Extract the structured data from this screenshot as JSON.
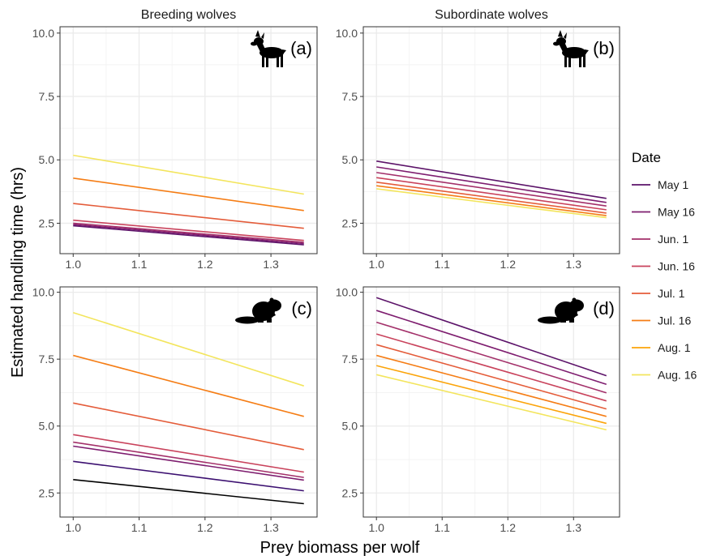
{
  "chart_data": {
    "type": "line",
    "xlabel": "Prey biomass per wolf",
    "ylabel": "Estimated handling time (hrs)",
    "columns": [
      "Breeding wolves",
      "Subordinate wolves"
    ],
    "xlim": [
      0.98,
      1.37
    ],
    "x_ticks": [
      "1.0",
      "1.1",
      "1.2",
      "1.3"
    ],
    "x_tick_values": [
      1.0,
      1.1,
      1.2,
      1.3
    ],
    "y_ticks": [
      "2.5",
      "5.0",
      "7.5",
      "10.0"
    ],
    "y_tick_values": [
      2.5,
      5.0,
      7.5,
      10.0
    ],
    "grid": true,
    "legend": {
      "title": "Date",
      "position": "right",
      "entries": [
        "May 1",
        "May 16",
        "Jun. 1",
        "Jun. 16",
        "Jul. 1",
        "Jul. 16",
        "Aug. 1",
        "Aug. 16"
      ],
      "colors": [
        "#5c1369",
        "#7e1d6f",
        "#a3306a",
        "#c9435c",
        "#e45c3a",
        "#f57d15",
        "#fba40a",
        "#f3e55d"
      ]
    },
    "panels": [
      {
        "tag": "(a)",
        "column": 0,
        "row": 0,
        "prey_icon": "deer-icon",
        "ylim": [
          1.3,
          10.25
        ],
        "series": [
          {
            "x": [
              1.0,
              1.35
            ],
            "y": [
              2.4,
              1.65
            ],
            "color": "#5c1369"
          },
          {
            "x": [
              1.0,
              1.35
            ],
            "y": [
              2.45,
              1.7
            ],
            "color": "#7e1d6f"
          },
          {
            "x": [
              1.0,
              1.35
            ],
            "y": [
              2.5,
              1.75
            ],
            "color": "#a3306a"
          },
          {
            "x": [
              1.0,
              1.35
            ],
            "y": [
              2.62,
              1.82
            ],
            "color": "#c9435c"
          },
          {
            "x": [
              1.0,
              1.35
            ],
            "y": [
              3.28,
              2.3
            ],
            "color": "#e45c3a"
          },
          {
            "x": [
              1.0,
              1.35
            ],
            "y": [
              4.28,
              3.0
            ],
            "color": "#f57d15"
          },
          {
            "x": [
              1.0,
              1.35
            ],
            "y": [
              5.18,
              3.65
            ],
            "color": "#f3e55d"
          }
        ]
      },
      {
        "tag": "(b)",
        "column": 1,
        "row": 0,
        "prey_icon": "deer-icon",
        "ylim": [
          1.3,
          10.25
        ],
        "series": [
          {
            "x": [
              1.0,
              1.35
            ],
            "y": [
              4.95,
              3.48
            ],
            "color": "#5c1369"
          },
          {
            "x": [
              1.0,
              1.35
            ],
            "y": [
              4.72,
              3.32
            ],
            "color": "#7e1d6f"
          },
          {
            "x": [
              1.0,
              1.35
            ],
            "y": [
              4.5,
              3.18
            ],
            "color": "#a3306a"
          },
          {
            "x": [
              1.0,
              1.35
            ],
            "y": [
              4.3,
              3.03
            ],
            "color": "#c9435c"
          },
          {
            "x": [
              1.0,
              1.35
            ],
            "y": [
              4.12,
              2.9
            ],
            "color": "#e45c3a"
          },
          {
            "x": [
              1.0,
              1.35
            ],
            "y": [
              3.98,
              2.8
            ],
            "color": "#f57d15"
          },
          {
            "x": [
              1.0,
              1.35
            ],
            "y": [
              3.86,
              2.72
            ],
            "color": "#f3e55d"
          }
        ]
      },
      {
        "tag": "(c)",
        "column": 0,
        "row": 1,
        "prey_icon": "beaver-icon",
        "ylim": [
          1.6,
          10.2
        ],
        "series": [
          {
            "x": [
              1.0,
              1.35
            ],
            "y": [
              3.0,
              2.1
            ],
            "color": "#000000"
          },
          {
            "x": [
              1.0,
              1.35
            ],
            "y": [
              3.68,
              2.58
            ],
            "color": "#3b0f70"
          },
          {
            "x": [
              1.0,
              1.35
            ],
            "y": [
              4.25,
              2.98
            ],
            "color": "#7e1d6f"
          },
          {
            "x": [
              1.0,
              1.35
            ],
            "y": [
              4.4,
              3.08
            ],
            "color": "#a3306a"
          },
          {
            "x": [
              1.0,
              1.35
            ],
            "y": [
              4.68,
              3.28
            ],
            "color": "#c9435c"
          },
          {
            "x": [
              1.0,
              1.35
            ],
            "y": [
              5.86,
              4.12
            ],
            "color": "#e45c3a"
          },
          {
            "x": [
              1.0,
              1.35
            ],
            "y": [
              7.64,
              5.36
            ],
            "color": "#f57d15"
          },
          {
            "x": [
              1.0,
              1.35
            ],
            "y": [
              9.24,
              6.5
            ],
            "color": "#f3e55d"
          }
        ]
      },
      {
        "tag": "(d)",
        "column": 1,
        "row": 1,
        "prey_icon": "beaver-icon",
        "ylim": [
          1.6,
          10.2
        ],
        "series": [
          {
            "x": [
              1.0,
              1.35
            ],
            "y": [
              9.8,
              6.88
            ],
            "color": "#5c1369"
          },
          {
            "x": [
              1.0,
              1.35
            ],
            "y": [
              9.32,
              6.56
            ],
            "color": "#7e1d6f"
          },
          {
            "x": [
              1.0,
              1.35
            ],
            "y": [
              8.88,
              6.24
            ],
            "color": "#a3306a"
          },
          {
            "x": [
              1.0,
              1.35
            ],
            "y": [
              8.44,
              5.94
            ],
            "color": "#c9435c"
          },
          {
            "x": [
              1.0,
              1.35
            ],
            "y": [
              8.04,
              5.64
            ],
            "color": "#e45c3a"
          },
          {
            "x": [
              1.0,
              1.35
            ],
            "y": [
              7.64,
              5.36
            ],
            "color": "#f57d15"
          },
          {
            "x": [
              1.0,
              1.35
            ],
            "y": [
              7.26,
              5.1
            ],
            "color": "#fba40a"
          },
          {
            "x": [
              1.0,
              1.35
            ],
            "y": [
              6.92,
              4.86
            ],
            "color": "#f3e55d"
          }
        ]
      }
    ]
  }
}
